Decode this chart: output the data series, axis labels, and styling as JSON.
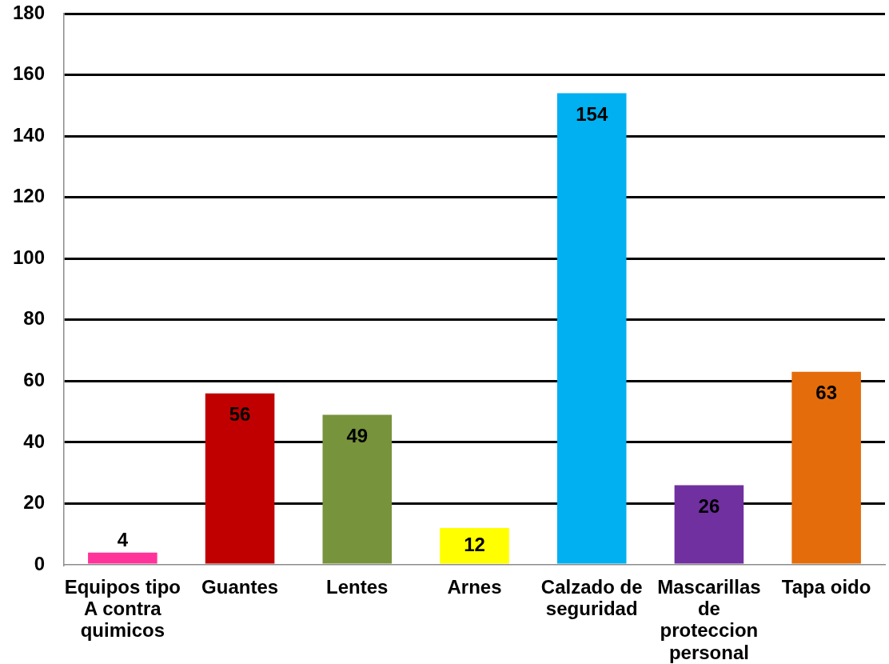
{
  "chart_data": {
    "type": "bar",
    "categories": [
      "Equipos tipo A contra quimicos",
      "Guantes",
      "Lentes",
      "Arnes",
      "Calzado de seguridad",
      "Mascarillas de proteccion personal",
      "Tapa oido"
    ],
    "values": [
      4,
      56,
      49,
      12,
      154,
      26,
      63
    ],
    "colors": [
      "#ff3399",
      "#c00000",
      "#77933c",
      "#ffff00",
      "#00b0f0",
      "#7030a0",
      "#e46c0a"
    ],
    "ylim": [
      0,
      180
    ],
    "yticks": [
      0,
      20,
      40,
      60,
      80,
      100,
      120,
      140,
      160,
      180
    ],
    "grid": "y",
    "data_labels": true
  }
}
